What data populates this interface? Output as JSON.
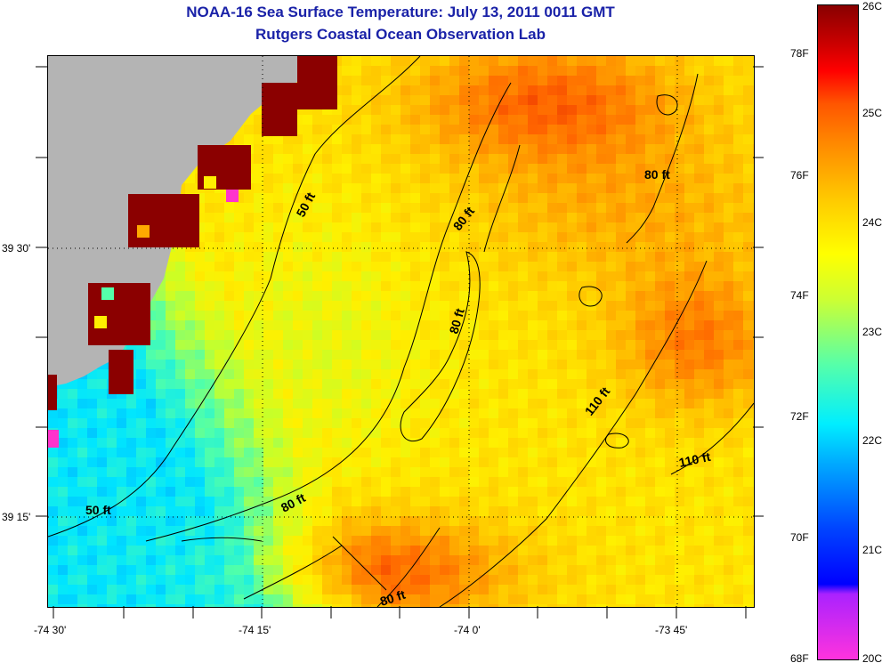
{
  "header": {
    "title": "NOAA-16 Sea Surface Temperature:  July 13, 2011 0011 GMT",
    "subtitle": "Rutgers Coastal Ocean Observation Lab"
  },
  "map": {
    "lat_labels": [
      "39 30'",
      "39 15'"
    ],
    "lon_labels": [
      "-74 30'",
      "-74 15'",
      "-74 0'",
      "-73 45'"
    ],
    "contour_labels": [
      "50 ft",
      "50 ft",
      "80 ft",
      "80 ft",
      "80 ft",
      "80 ft",
      "80 ft",
      "110 ft",
      "110 ft"
    ],
    "land_color": "#b4b4b4",
    "contour_color": "#000000"
  },
  "colorbar": {
    "celsius_labels": [
      "26C",
      "25C",
      "24C",
      "23C",
      "22C",
      "21C",
      "20C"
    ],
    "fahrenheit_labels": [
      "78F",
      "76F",
      "74F",
      "72F",
      "70F",
      "68F"
    ],
    "colors": [
      "#ff33cc",
      "#cc22dd",
      "#0000ff",
      "#0077ff",
      "#00ddff",
      "#55ffaa",
      "#ddff22",
      "#ffee00",
      "#ffaa00",
      "#ff6600",
      "#ff1100",
      "#990000"
    ]
  }
}
